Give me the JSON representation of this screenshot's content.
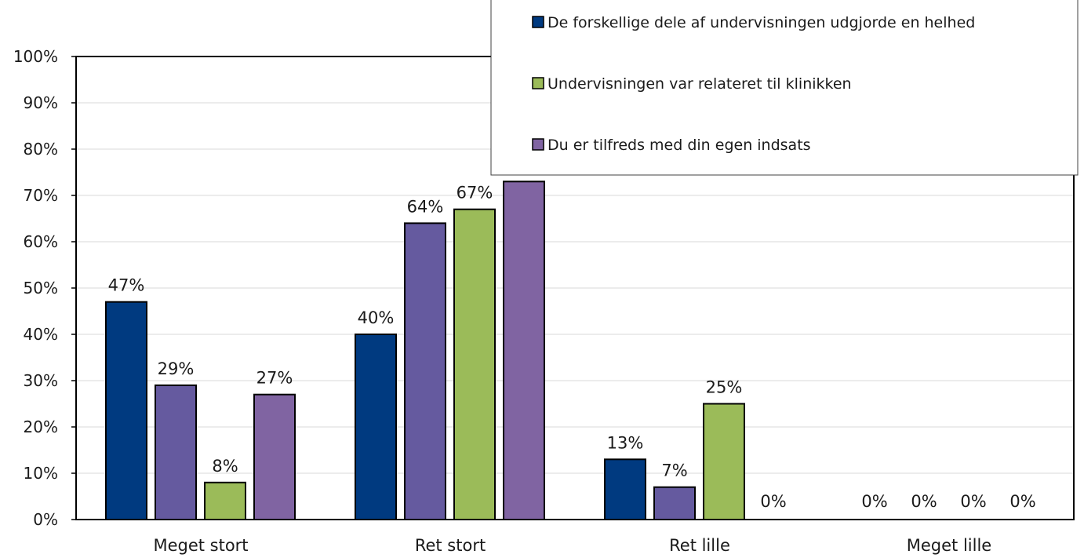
{
  "chart_data": {
    "type": "bar",
    "categories": [
      "Meget stort",
      "Ret stort",
      "Ret lille",
      "Meget lille"
    ],
    "series": [
      {
        "name": "De forskellige dele af undervisningen udgjorde en helhed",
        "color": "#003A80",
        "values": [
          47,
          40,
          13,
          0
        ],
        "labels": [
          "47%",
          "40%",
          "13%",
          "0%"
        ]
      },
      {
        "name": "",
        "color": "#655A9F",
        "values": [
          29,
          64,
          7,
          0
        ],
        "labels": [
          "29%",
          "64%",
          "7%",
          "0%"
        ]
      },
      {
        "name": "Undervisningen var relateret til klinikken",
        "color": "#9BBB59",
        "values": [
          8,
          67,
          25,
          0
        ],
        "labels": [
          "8%",
          "67%",
          "25%",
          "0%"
        ]
      },
      {
        "name": "Du er tilfreds med din egen indsats",
        "color": "#8064A2",
        "values": [
          27,
          73,
          0,
          0
        ],
        "labels": [
          "27%",
          "",
          "0%",
          "0%"
        ]
      }
    ],
    "yticks": [
      "0%",
      "10%",
      "20%",
      "30%",
      "40%",
      "50%",
      "60%",
      "70%",
      "80%",
      "90%",
      "100%"
    ],
    "ylim": [
      0,
      100
    ],
    "grid": true,
    "legend": "top-right"
  }
}
